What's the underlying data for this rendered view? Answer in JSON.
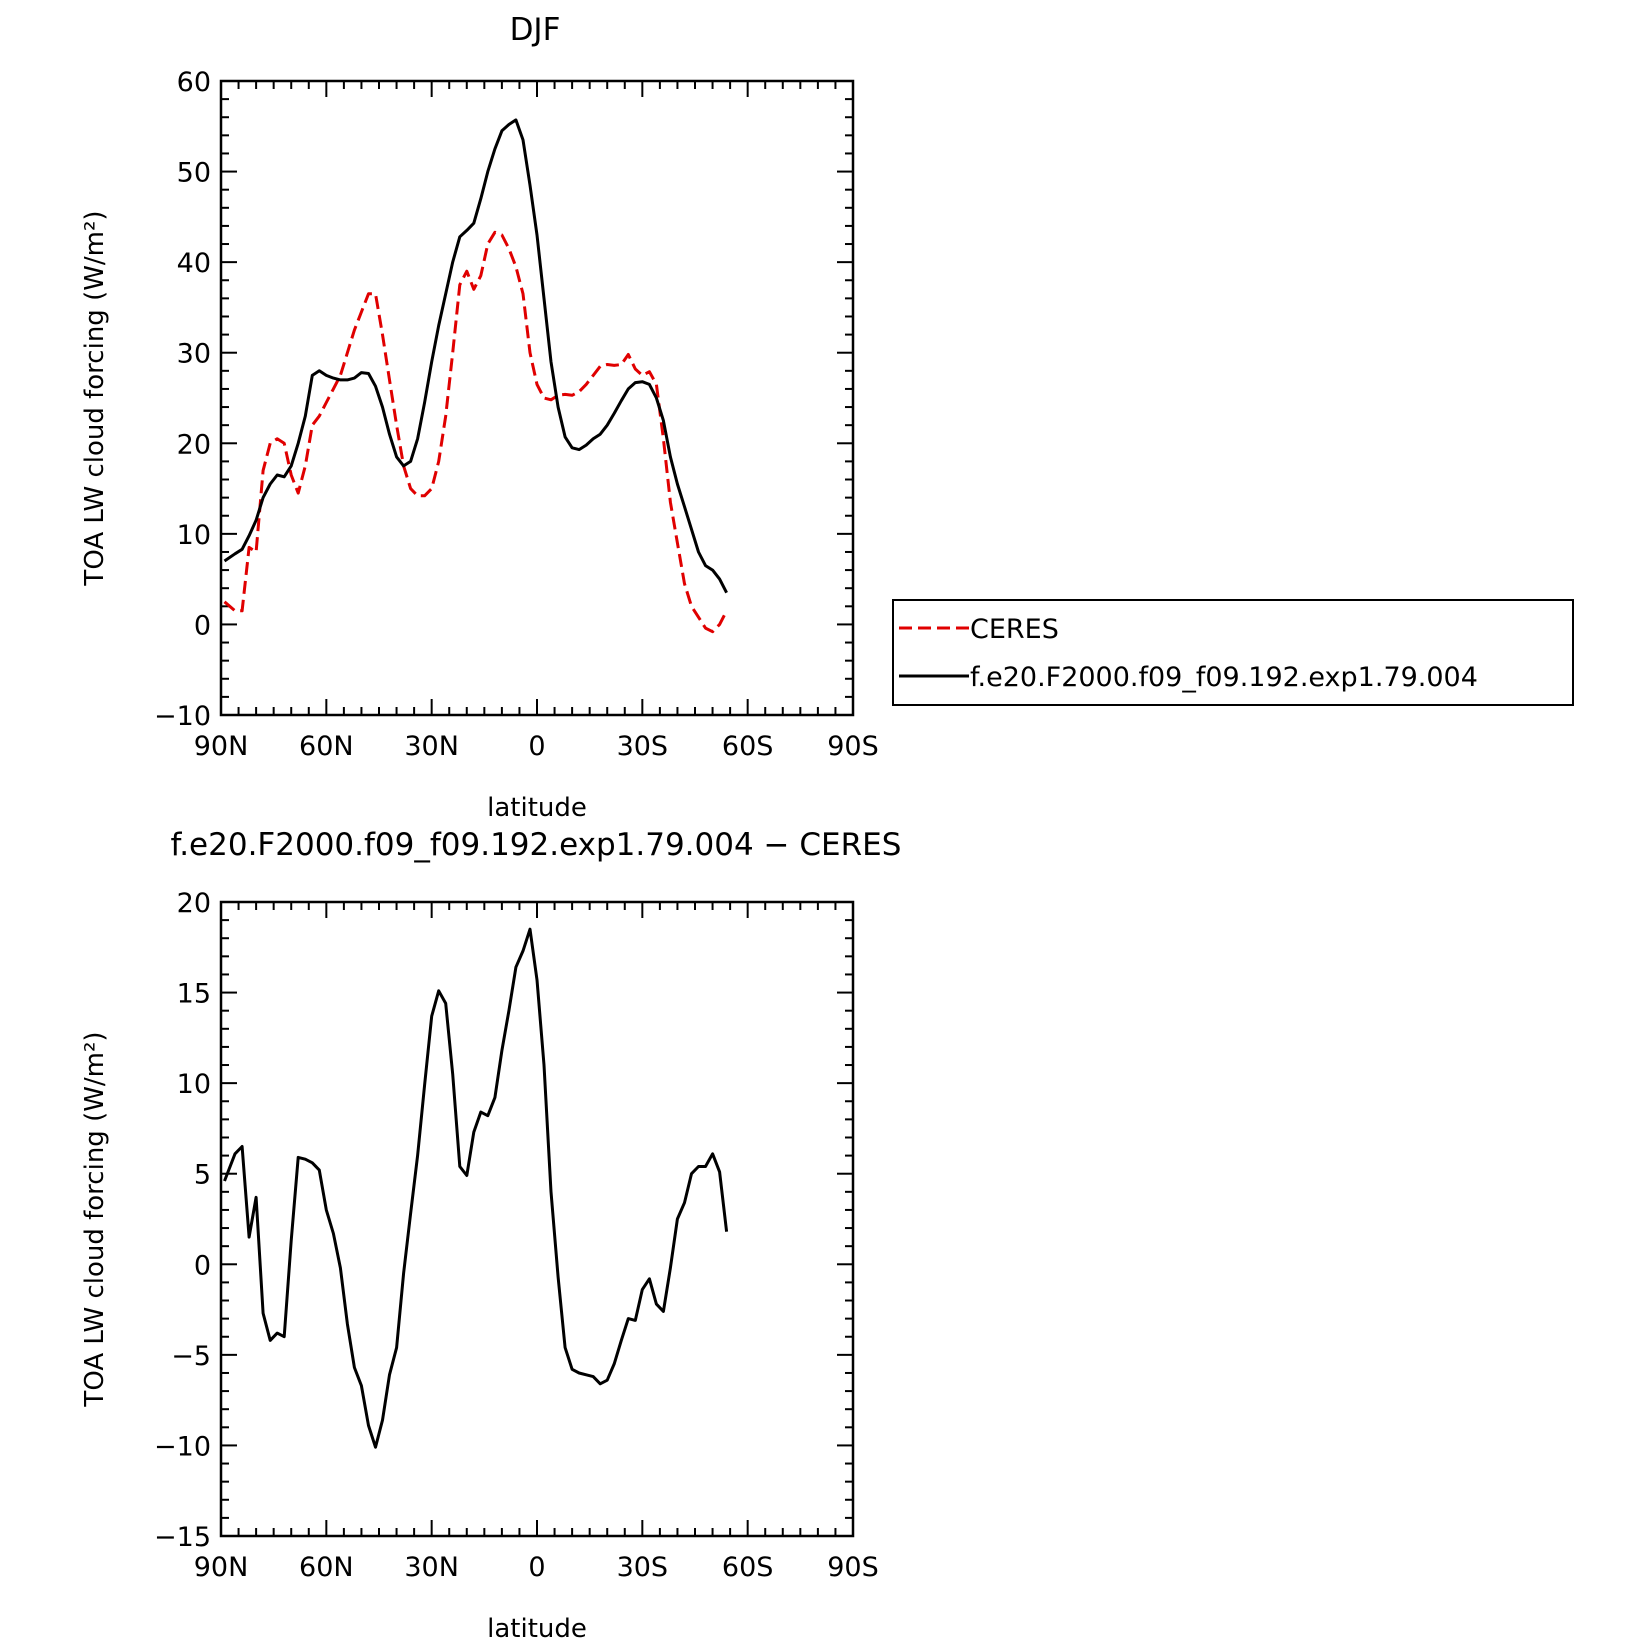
{
  "chart_data": [
    {
      "type": "line",
      "title": "DJF",
      "xlabel": "latitude",
      "ylabel": "TOA LW cloud forcing (W/m²)",
      "xlim": [
        -90,
        90
      ],
      "ylim": [
        -10,
        60
      ],
      "x_ticks": [
        {
          "value": -90,
          "label": "90N"
        },
        {
          "value": -60,
          "label": "60N"
        },
        {
          "value": -30,
          "label": "30N"
        },
        {
          "value": 0,
          "label": "0"
        },
        {
          "value": 30,
          "label": "30S"
        },
        {
          "value": 60,
          "label": "60S"
        },
        {
          "value": 90,
          "label": "90S"
        }
      ],
      "y_ticks": [
        -10,
        0,
        10,
        20,
        30,
        40,
        50,
        60
      ],
      "y_tick_labels": [
        "−10",
        "0",
        "10",
        "20",
        "30",
        "40",
        "50",
        "60"
      ],
      "legend_placement": "right, outside plot",
      "series": [
        {
          "name": "CERES",
          "color": "#e00000",
          "dash": "dashed",
          "points": [
            [
              -89,
              2.5
            ],
            [
              -86,
              1.5
            ],
            [
              -84,
              1.5
            ],
            [
              -82,
              8.5
            ],
            [
              -80,
              8
            ],
            [
              -78,
              17
            ],
            [
              -76,
              20
            ],
            [
              -74,
              20.5
            ],
            [
              -72,
              20
            ],
            [
              -70,
              16.5
            ],
            [
              -68,
              14.5
            ],
            [
              -66,
              17.5
            ],
            [
              -64,
              22
            ],
            [
              -62,
              23
            ],
            [
              -60,
              24.5
            ],
            [
              -58,
              26
            ],
            [
              -56,
              27.5
            ],
            [
              -54,
              30
            ],
            [
              -52,
              32.5
            ],
            [
              -50,
              34.5
            ],
            [
              -48,
              36.5
            ],
            [
              -46,
              36.5
            ],
            [
              -44,
              32
            ],
            [
              -42,
              27
            ],
            [
              -40,
              22
            ],
            [
              -38,
              17.5
            ],
            [
              -36,
              15
            ],
            [
              -34,
              14.2
            ],
            [
              -32,
              14.2
            ],
            [
              -30,
              15
            ],
            [
              -28,
              18
            ],
            [
              -26,
              23
            ],
            [
              -24,
              30
            ],
            [
              -22,
              37.5
            ],
            [
              -20,
              39
            ],
            [
              -18,
              37
            ],
            [
              -16,
              38.5
            ],
            [
              -14,
              42
            ],
            [
              -12,
              43.3
            ],
            [
              -10,
              43
            ],
            [
              -8,
              41.5
            ],
            [
              -6,
              39.5
            ],
            [
              -4,
              36.5
            ],
            [
              -2,
              30
            ],
            [
              0,
              26.5
            ],
            [
              2,
              25
            ],
            [
              4,
              24.8
            ],
            [
              6,
              25.3
            ],
            [
              8,
              25.4
            ],
            [
              10,
              25.3
            ],
            [
              12,
              25.7
            ],
            [
              14,
              26.5
            ],
            [
              16,
              27.5
            ],
            [
              18,
              28.5
            ],
            [
              20,
              28.7
            ],
            [
              22,
              28.6
            ],
            [
              24,
              28.7
            ],
            [
              26,
              29.8
            ],
            [
              28,
              28.2
            ],
            [
              30,
              27.5
            ],
            [
              32,
              27.9
            ],
            [
              34,
              26.5
            ],
            [
              36,
              20.5
            ],
            [
              38,
              13.5
            ],
            [
              40,
              9
            ],
            [
              42,
              4.5
            ],
            [
              44,
              2
            ],
            [
              46,
              0.8
            ],
            [
              48,
              -0.4
            ],
            [
              50,
              -0.8
            ],
            [
              52,
              0
            ],
            [
              54,
              1.5
            ]
          ]
        },
        {
          "name": "f.e20.F2000.f09_f09.192.exp1.79.004",
          "color": "#000000",
          "dash": "solid",
          "points": [
            [
              -89,
              7
            ],
            [
              -86,
              7.8
            ],
            [
              -84,
              8.3
            ],
            [
              -82,
              9.8
            ],
            [
              -80,
              11.5
            ],
            [
              -78,
              14
            ],
            [
              -76,
              15.5
            ],
            [
              -74,
              16.5
            ],
            [
              -72,
              16.3
            ],
            [
              -70,
              17.5
            ],
            [
              -68,
              20
            ],
            [
              -66,
              23
            ],
            [
              -64,
              27.5
            ],
            [
              -62,
              28
            ],
            [
              -60,
              27.5
            ],
            [
              -58,
              27.2
            ],
            [
              -56,
              27
            ],
            [
              -54,
              27
            ],
            [
              -52,
              27.2
            ],
            [
              -50,
              27.8
            ],
            [
              -48,
              27.7
            ],
            [
              -46,
              26.3
            ],
            [
              -44,
              24
            ],
            [
              -42,
              21
            ],
            [
              -40,
              18.5
            ],
            [
              -38,
              17.5
            ],
            [
              -36,
              18
            ],
            [
              -34,
              20.5
            ],
            [
              -32,
              24.5
            ],
            [
              -30,
              29
            ],
            [
              -28,
              33
            ],
            [
              -26,
              36.5
            ],
            [
              -24,
              40
            ],
            [
              -22,
              42.8
            ],
            [
              -20,
              43.5
            ],
            [
              -18,
              44.3
            ],
            [
              -16,
              47
            ],
            [
              -14,
              50
            ],
            [
              -12,
              52.5
            ],
            [
              -10,
              54.5
            ],
            [
              -8,
              55.2
            ],
            [
              -6,
              55.7
            ],
            [
              -4,
              53.5
            ],
            [
              -2,
              48.5
            ],
            [
              0,
              43
            ],
            [
              2,
              36
            ],
            [
              4,
              29
            ],
            [
              6,
              24
            ],
            [
              8,
              20.7
            ],
            [
              10,
              19.5
            ],
            [
              12,
              19.3
            ],
            [
              14,
              19.8
            ],
            [
              16,
              20.5
            ],
            [
              18,
              21
            ],
            [
              20,
              22
            ],
            [
              22,
              23.3
            ],
            [
              24,
              24.7
            ],
            [
              26,
              26
            ],
            [
              28,
              26.7
            ],
            [
              30,
              26.8
            ],
            [
              32,
              26.5
            ],
            [
              34,
              25
            ],
            [
              36,
              22.5
            ],
            [
              38,
              18.5
            ],
            [
              40,
              15.5
            ],
            [
              42,
              13
            ],
            [
              44,
              10.5
            ],
            [
              46,
              8
            ],
            [
              48,
              6.5
            ],
            [
              50,
              6
            ],
            [
              52,
              5
            ],
            [
              54,
              3.5
            ]
          ]
        }
      ]
    },
    {
      "type": "line",
      "title": "f.e20.F2000.f09_f09.192.exp1.79.004 − CERES",
      "xlabel": "latitude",
      "ylabel": "TOA LW cloud forcing (W/m²)",
      "xlim": [
        -90,
        90
      ],
      "ylim": [
        -15,
        20
      ],
      "x_ticks": [
        {
          "value": -90,
          "label": "90N"
        },
        {
          "value": -60,
          "label": "60N"
        },
        {
          "value": -30,
          "label": "30N"
        },
        {
          "value": 0,
          "label": "0"
        },
        {
          "value": 30,
          "label": "30S"
        },
        {
          "value": 60,
          "label": "60S"
        },
        {
          "value": 90,
          "label": "90S"
        }
      ],
      "y_ticks": [
        -15,
        -10,
        -5,
        0,
        5,
        10,
        15,
        20
      ],
      "y_tick_labels": [
        "−15",
        "−10",
        "−5",
        "0",
        "5",
        "10",
        "15",
        "20"
      ],
      "series": [
        {
          "color": "#000000",
          "dash": "solid",
          "points": [
            [
              -89,
              4.6
            ],
            [
              -86,
              6.1
            ],
            [
              -84,
              6.5
            ],
            [
              -82,
              1.5
            ],
            [
              -80,
              3.7
            ],
            [
              -78,
              -2.7
            ],
            [
              -76,
              -4.2
            ],
            [
              -74,
              -3.8
            ],
            [
              -72,
              -4
            ],
            [
              -70,
              1.3
            ],
            [
              -68,
              5.9
            ],
            [
              -66,
              5.8
            ],
            [
              -64,
              5.6
            ],
            [
              -62,
              5.2
            ],
            [
              -60,
              3
            ],
            [
              -58,
              1.7
            ],
            [
              -56,
              -0.2
            ],
            [
              -54,
              -3.3
            ],
            [
              -52,
              -5.7
            ],
            [
              -50,
              -6.7
            ],
            [
              -48,
              -8.9
            ],
            [
              -46,
              -10.1
            ],
            [
              -44,
              -8.6
            ],
            [
              -42,
              -6.1
            ],
            [
              -40,
              -4.6
            ],
            [
              -38,
              -0.5
            ],
            [
              -36,
              2.8
            ],
            [
              -34,
              6
            ],
            [
              -32,
              9.9
            ],
            [
              -30,
              13.7
            ],
            [
              -28,
              15.1
            ],
            [
              -26,
              14.4
            ],
            [
              -24,
              10.5
            ],
            [
              -22,
              5.4
            ],
            [
              -20,
              4.9
            ],
            [
              -18,
              7.3
            ],
            [
              -16,
              8.4
            ],
            [
              -14,
              8.2
            ],
            [
              -12,
              9.2
            ],
            [
              -10,
              11.8
            ],
            [
              -8,
              14
            ],
            [
              -6,
              16.4
            ],
            [
              -4,
              17.3
            ],
            [
              -2,
              18.5
            ],
            [
              0,
              15.7
            ],
            [
              2,
              11
            ],
            [
              4,
              4
            ],
            [
              6,
              -0.7
            ],
            [
              8,
              -4.6
            ],
            [
              10,
              -5.8
            ],
            [
              12,
              -6
            ],
            [
              14,
              -6.1
            ],
            [
              16,
              -6.2
            ],
            [
              18,
              -6.6
            ],
            [
              20,
              -6.4
            ],
            [
              22,
              -5.5
            ],
            [
              24,
              -4.2
            ],
            [
              26,
              -3
            ],
            [
              28,
              -3.1
            ],
            [
              30,
              -1.4
            ],
            [
              32,
              -0.8
            ],
            [
              34,
              -2.2
            ],
            [
              36,
              -2.6
            ],
            [
              38,
              -0.2
            ],
            [
              40,
              2.5
            ],
            [
              42,
              3.4
            ],
            [
              44,
              5
            ],
            [
              46,
              5.4
            ],
            [
              48,
              5.4
            ],
            [
              50,
              6.1
            ],
            [
              52,
              5.1
            ],
            [
              54,
              1.8
            ]
          ]
        }
      ]
    }
  ]
}
